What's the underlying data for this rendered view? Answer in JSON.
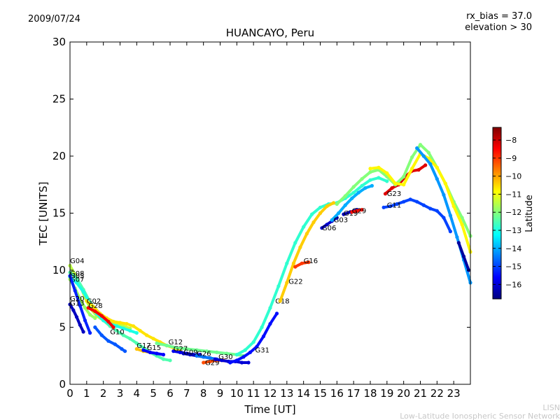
{
  "header": {
    "date": "2009/07/24",
    "params_line1": "rx_bias = 37.0",
    "params_line2": "elevation > 30"
  },
  "watermark": {
    "line1": "LISN",
    "line2": "Low-Latitude Ionospheric Sensor Network"
  },
  "chart_data": {
    "type": "scatter",
    "title": "HUANCAYO, Peru",
    "xlabel": "Time [UT]",
    "ylabel": "TEC [UNITS]",
    "xlim": [
      0,
      24
    ],
    "ylim": [
      0,
      30
    ],
    "x_ticks": [
      0,
      1,
      2,
      3,
      4,
      5,
      6,
      7,
      8,
      9,
      10,
      11,
      12,
      13,
      14,
      15,
      16,
      17,
      18,
      19,
      20,
      21,
      22,
      23
    ],
    "y_ticks": [
      0,
      5,
      10,
      15,
      20,
      25,
      30
    ],
    "grid": false,
    "colorbar": {
      "label": "Latitude",
      "range": [
        -16.8,
        -7.3
      ],
      "ticks": [
        -8,
        -9,
        -10,
        -11,
        -12,
        -13,
        -14,
        -15,
        -16
      ],
      "colormap": [
        "#00007f",
        "#0000ff",
        "#007fff",
        "#00ffff",
        "#7fff7f",
        "#ffff00",
        "#ff7f00",
        "#ff0000",
        "#7f0000"
      ]
    },
    "series": [
      {
        "name": "G04",
        "lat": -11.5,
        "label_at": [
          0.0,
          10.6
        ],
        "x": [
          0.0,
          0.3,
          0.6,
          0.9,
          1.2,
          1.6,
          2.0,
          2.4,
          2.8,
          3.2,
          3.6
        ],
        "y": [
          10.4,
          9.6,
          8.7,
          7.6,
          6.7,
          6.0,
          5.6,
          5.4,
          5.3,
          5.1,
          4.9
        ]
      },
      {
        "name": "G08",
        "lat": -12.5,
        "label_at": [
          0.0,
          9.5
        ],
        "x": [
          0.0,
          0.4,
          0.8,
          1.2,
          1.6,
          2.0,
          2.4,
          2.8,
          3.2,
          3.6,
          4.0,
          4.4,
          4.8,
          5.2,
          5.6,
          6.0
        ],
        "y": [
          9.8,
          9.3,
          8.3,
          7.2,
          6.3,
          5.6,
          5.1,
          4.7,
          4.3,
          4.0,
          3.6,
          3.2,
          2.8,
          2.5,
          2.2,
          2.1
        ]
      },
      {
        "name": "G05",
        "lat": -13.0,
        "label_at": [
          0.0,
          9.3
        ],
        "x": [
          0.0,
          0.4,
          0.8,
          1.2,
          1.6,
          2.0,
          2.4,
          2.8,
          3.2,
          3.6,
          4.0
        ],
        "y": [
          9.4,
          8.9,
          8.1,
          7.1,
          6.2,
          5.6,
          5.3,
          5.1,
          4.9,
          4.7,
          4.5
        ]
      },
      {
        "name": "G07",
        "lat": -11.8,
        "label_at": [
          0.0,
          9.0
        ],
        "x": [
          0.0,
          0.3,
          0.6,
          0.9,
          1.2,
          1.5
        ],
        "y": [
          9.2,
          8.4,
          7.5,
          6.7,
          6.1,
          5.8
        ]
      },
      {
        "name": "G20",
        "lat": -15.3,
        "label_at": [
          0.0,
          7.3
        ],
        "x": [
          0.0,
          0.3,
          0.6,
          0.9,
          1.2
        ],
        "y": [
          9.5,
          8.2,
          6.9,
          5.6,
          4.5
        ]
      },
      {
        "name": "G13",
        "lat": -16.2,
        "label_at": [
          0.0,
          6.9
        ],
        "x": [
          0.0,
          0.2,
          0.4,
          0.6,
          0.8
        ],
        "y": [
          7.0,
          6.5,
          5.9,
          5.2,
          4.6
        ]
      },
      {
        "name": "G02",
        "lat": -10.6,
        "label_at": [
          1.0,
          7.1
        ],
        "x": [
          1.0,
          1.4,
          1.8,
          2.2,
          2.6,
          3.0,
          3.4,
          3.8,
          4.2,
          4.6,
          5.0,
          5.4,
          5.8,
          6.2,
          6.6
        ],
        "y": [
          7.3,
          6.8,
          6.2,
          5.8,
          5.5,
          5.4,
          5.3,
          5.1,
          4.7,
          4.3,
          4.0,
          3.7,
          3.4,
          3.2,
          3.0
        ]
      },
      {
        "name": "G28",
        "lat": -8.4,
        "label_at": [
          1.1,
          6.7
        ],
        "x": [
          1.1,
          1.5,
          1.9,
          2.3,
          2.6
        ],
        "y": [
          6.7,
          6.4,
          6.0,
          5.5,
          5.0
        ]
      },
      {
        "name": "G10",
        "lat": -14.8,
        "label_at": [
          2.4,
          4.4
        ],
        "x": [
          1.5,
          1.9,
          2.3,
          2.7,
          3.1,
          3.3
        ],
        "y": [
          5.0,
          4.3,
          3.8,
          3.5,
          3.1,
          2.9
        ]
      },
      {
        "name": "G17",
        "lat": -10.3,
        "label_at": [
          4.0,
          3.2
        ],
        "x": [
          4.0,
          4.4,
          4.8,
          5.2
        ],
        "y": [
          3.1,
          2.9,
          2.8,
          2.7
        ]
      },
      {
        "name": "G15",
        "lat": -15.6,
        "label_at": [
          4.6,
          3.0
        ],
        "x": [
          4.4,
          4.8,
          5.2,
          5.6
        ],
        "y": [
          3.0,
          2.8,
          2.7,
          2.6
        ]
      },
      {
        "name": "G12",
        "lat": -12.2,
        "label_at": [
          5.9,
          3.5
        ],
        "x": [
          5.2,
          5.8,
          6.4,
          7.0,
          7.6,
          8.2,
          8.8,
          9.4,
          10.0,
          10.4
        ],
        "y": [
          3.6,
          3.4,
          3.2,
          3.1,
          3.0,
          2.9,
          2.8,
          2.7,
          2.6,
          2.5
        ]
      },
      {
        "name": "G27",
        "lat": -15.8,
        "label_at": [
          6.2,
          2.9
        ],
        "x": [
          6.2,
          6.6,
          7.0,
          7.4,
          7.8
        ],
        "y": [
          2.9,
          2.8,
          2.7,
          2.6,
          2.6
        ]
      },
      {
        "name": "G09",
        "lat": -16.2,
        "label_at": [
          6.8,
          2.6
        ],
        "x": [
          6.8,
          7.2,
          7.6,
          8.0,
          8.4
        ],
        "y": [
          2.7,
          2.6,
          2.5,
          2.4,
          2.3
        ]
      },
      {
        "name": "G26",
        "lat": -14.5,
        "label_at": [
          7.6,
          2.5
        ],
        "x": [
          7.6,
          8.0,
          8.4,
          8.8
        ],
        "y": [
          2.5,
          2.4,
          2.3,
          2.2
        ]
      },
      {
        "name": "G29",
        "lat": -9.2,
        "label_at": [
          8.1,
          1.7
        ],
        "x": [
          8.0,
          8.4,
          8.8,
          9.2
        ],
        "y": [
          1.9,
          2.0,
          2.1,
          2.1
        ]
      },
      {
        "name": "G30",
        "lat": -16.0,
        "label_at": [
          8.9,
          2.2
        ],
        "x": [
          8.7,
          9.1,
          9.5,
          9.9,
          10.3,
          10.7
        ],
        "y": [
          2.2,
          2.1,
          2.0,
          2.0,
          1.9,
          1.9
        ]
      },
      {
        "name": "G31",
        "lat": -15.5,
        "label_at": [
          11.1,
          2.8
        ],
        "x": [
          9.6,
          10.0,
          10.4,
          10.8,
          11.2,
          11.6,
          12.0,
          12.4
        ],
        "y": [
          1.9,
          2.1,
          2.4,
          2.8,
          3.3,
          4.2,
          5.3,
          6.2
        ]
      },
      {
        "name": "G18",
        "lat": -12.8,
        "label_at": [
          12.3,
          7.1
        ],
        "x": [
          10.0,
          10.5,
          11.0,
          11.5,
          12.0,
          12.5,
          13.0,
          13.5,
          14.0,
          14.5,
          15.0,
          15.5,
          16.0,
          16.5,
          17.0,
          17.5,
          18.0,
          18.5,
          19.0
        ],
        "y": [
          2.6,
          3.0,
          3.7,
          5.0,
          6.7,
          8.6,
          10.6,
          12.4,
          13.8,
          14.9,
          15.5,
          15.8,
          15.9,
          16.3,
          16.8,
          17.4,
          17.9,
          18.1,
          17.8
        ]
      },
      {
        "name": "G22",
        "lat": -10.4,
        "label_at": [
          13.1,
          8.8
        ],
        "x": [
          12.6,
          13.0,
          13.4,
          13.8,
          14.2,
          14.6,
          15.0,
          15.4,
          15.8
        ],
        "y": [
          7.3,
          8.9,
          10.6,
          12.0,
          13.2,
          14.2,
          15.0,
          15.6,
          15.9
        ]
      },
      {
        "name": "G16",
        "lat": -9.0,
        "label_at": [
          14.0,
          10.6
        ],
        "x": [
          13.5,
          13.9,
          14.3
        ],
        "y": [
          10.3,
          10.6,
          10.7
        ]
      },
      {
        "name": "G06",
        "lat": -16.1,
        "label_at": [
          15.1,
          13.5
        ],
        "x": [
          15.1,
          15.4,
          15.7,
          16.0
        ],
        "y": [
          13.7,
          14.0,
          14.3,
          14.6
        ]
      },
      {
        "name": "G03",
        "lat": -14.0,
        "label_at": [
          15.8,
          14.2
        ],
        "x": [
          15.7,
          16.1,
          16.5,
          16.9,
          17.3,
          17.7,
          18.1
        ],
        "y": [
          14.4,
          15.0,
          15.7,
          16.3,
          16.8,
          17.2,
          17.4
        ]
      },
      {
        "name": "G19",
        "lat": -16.3,
        "label_at": [
          16.4,
          14.8
        ],
        "x": [
          16.4,
          16.8,
          17.2
        ],
        "y": [
          14.9,
          15.1,
          15.3
        ]
      },
      {
        "name": "G29",
        "lat": -8.6,
        "label_at": [
          16.9,
          15.0
        ],
        "x": [
          16.9,
          17.2,
          17.5
        ],
        "y": [
          15.1,
          15.2,
          15.3
        ]
      },
      {
        "name": "G23",
        "lat": -8.2,
        "label_at": [
          19.0,
          16.5
        ],
        "x": [
          18.9,
          19.3,
          19.7,
          20.1,
          20.5,
          20.9,
          21.3
        ],
        "y": [
          16.7,
          17.2,
          17.5,
          18.2,
          18.7,
          18.8,
          19.2
        ]
      },
      {
        "name": "G11",
        "lat": -15.0,
        "label_at": [
          19.0,
          15.5
        ],
        "x": [
          18.8,
          19.2,
          19.6,
          20.0,
          20.4,
          20.8,
          21.2,
          21.6,
          22.0,
          22.4,
          22.8
        ],
        "y": [
          15.5,
          15.6,
          15.8,
          16.0,
          16.2,
          16.0,
          15.7,
          15.4,
          15.2,
          14.6,
          13.4
        ]
      },
      {
        "name": "",
        "lat": -12.0,
        "label_at": null,
        "x": [
          16.0,
          16.5,
          17.0,
          17.5,
          18.0,
          18.5,
          19.0,
          19.5,
          20.0,
          20.5,
          21.0,
          21.5,
          22.0,
          22.5,
          23.0,
          23.5,
          24.0
        ],
        "y": [
          15.8,
          16.5,
          17.3,
          18.0,
          18.6,
          18.8,
          18.2,
          17.5,
          18.2,
          19.9,
          21.0,
          20.3,
          19.0,
          17.6,
          16.0,
          14.6,
          13.0
        ]
      },
      {
        "name": "",
        "lat": -10.8,
        "label_at": null,
        "x": [
          18.0,
          18.5,
          19.0,
          19.5,
          20.0,
          20.5,
          21.0,
          21.5,
          22.0,
          22.5,
          23.0,
          23.5,
          24.0
        ],
        "y": [
          18.9,
          19.0,
          18.5,
          17.6,
          17.5,
          18.9,
          20.2,
          19.8,
          19.0,
          17.6,
          15.6,
          14.0,
          11.6
        ]
      },
      {
        "name": "",
        "lat": -14.2,
        "label_at": null,
        "x": [
          20.8,
          21.2,
          21.6,
          22.0,
          22.4,
          22.8,
          23.2,
          23.6,
          24.0
        ],
        "y": [
          20.7,
          20.0,
          19.3,
          18.0,
          16.6,
          14.8,
          12.9,
          10.9,
          8.9
        ]
      },
      {
        "name": "",
        "lat": -16.5,
        "label_at": null,
        "x": [
          23.3,
          23.6,
          23.9
        ],
        "y": [
          12.4,
          11.2,
          10.0
        ]
      }
    ]
  }
}
